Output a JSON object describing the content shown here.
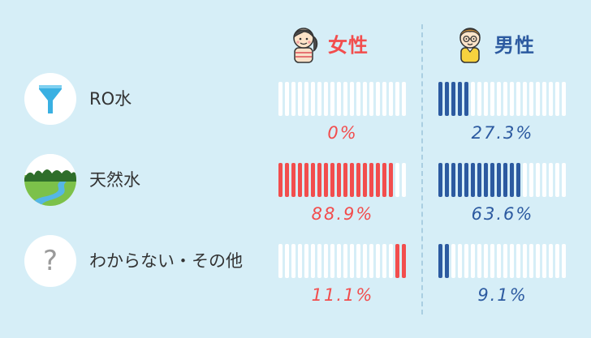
{
  "headers": {
    "female": {
      "label": "女性",
      "color": "#f24d4d",
      "icon": "girl-avatar-icon"
    },
    "male": {
      "label": "男性",
      "color": "#2c5aa0",
      "icon": "boy-avatar-icon"
    }
  },
  "colors": {
    "background": "#d6eef7",
    "bar_empty": "#ffffff",
    "female": "#f24d4d",
    "male": "#2c5aa0"
  },
  "rows": [
    {
      "label": "RO水",
      "icon": "funnel-filter-icon",
      "female_pct": "0%",
      "male_pct": "27.3%"
    },
    {
      "label": "天然水",
      "icon": "forest-river-icon",
      "female_pct": "88.9%",
      "male_pct": "63.6%"
    },
    {
      "label": "わからない・その他",
      "icon": "question-mark-icon",
      "female_pct": "11.1%",
      "male_pct": "9.1%"
    }
  ],
  "chart_data": {
    "type": "bar",
    "categories": [
      "RO水",
      "天然水",
      "わからない・その他"
    ],
    "series": [
      {
        "name": "女性",
        "values": [
          0,
          88.9,
          11.1
        ],
        "color": "#f24d4d",
        "fill_from": "left, left, right"
      },
      {
        "name": "男性",
        "values": [
          27.3,
          63.6,
          9.1
        ],
        "color": "#2c5aa0"
      }
    ],
    "ylim": [
      0,
      100
    ],
    "unit": "%",
    "segments_per_bar": 20
  }
}
